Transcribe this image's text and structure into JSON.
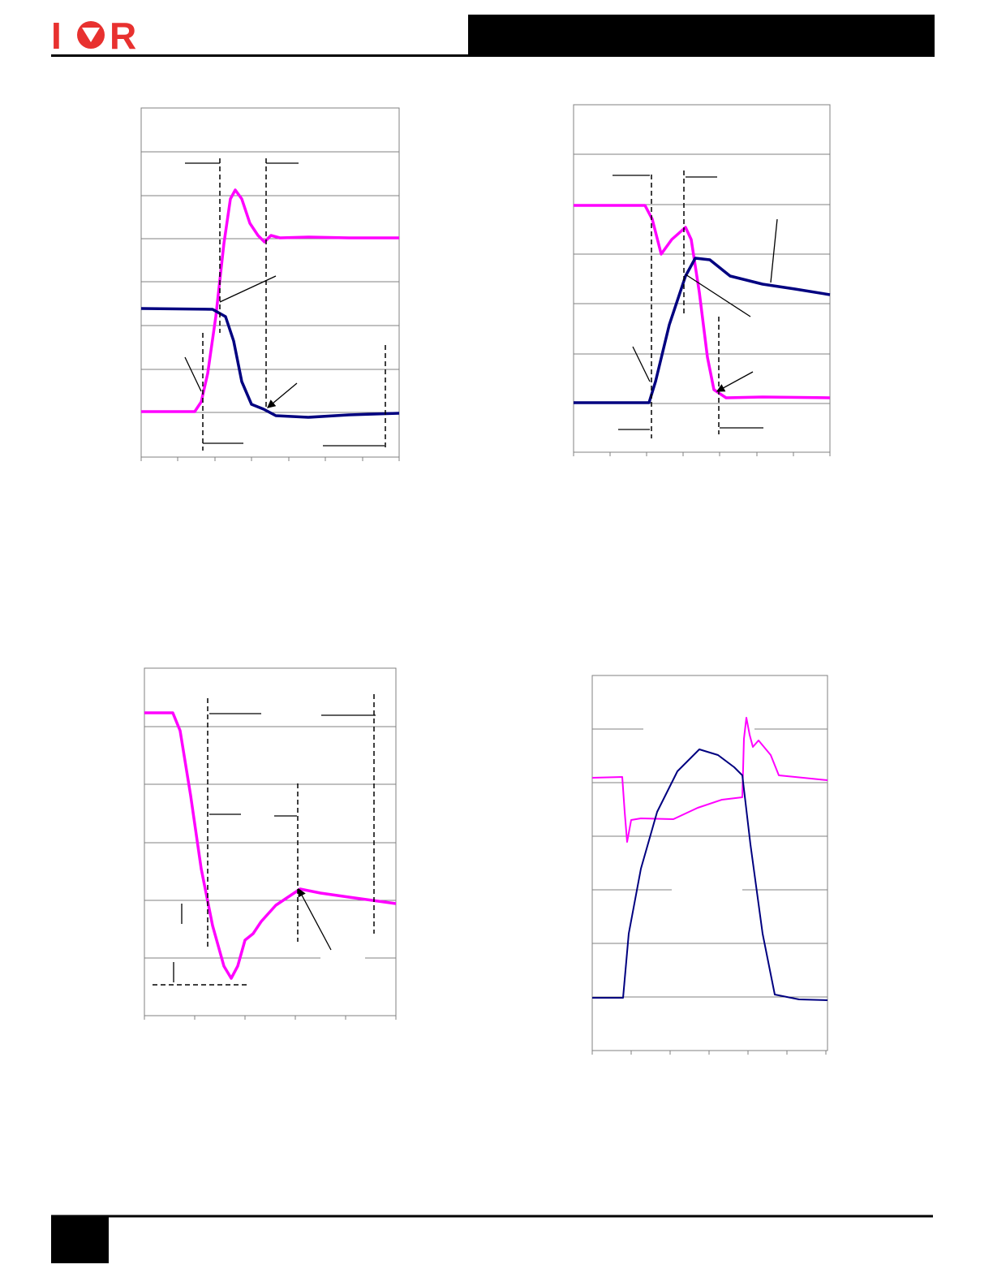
{
  "header": {
    "logo_left": "I",
    "logo_right": "R"
  }
}
